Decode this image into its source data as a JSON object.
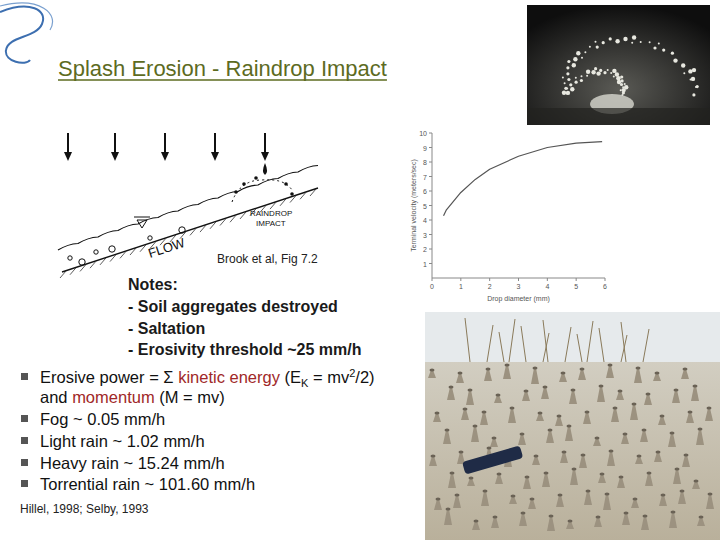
{
  "title": "Splash Erosion - Raindrop Impact",
  "diagram": {
    "labels": [
      "RAINDROP",
      "IMPACT"
    ],
    "flow": "FLOW",
    "caption": "Brook et al, Fig 7.2"
  },
  "notes": {
    "heading": "Notes:",
    "items": [
      "- Soil aggregates destroyed",
      "- Saltation",
      "- Erosivity threshold ~25 mm/h"
    ]
  },
  "bullets": [
    {
      "lines": [
        [
          {
            "text": "Erosive power = Σ "
          },
          {
            "text": "kinetic energy",
            "format": "emphasis"
          },
          {
            "text": " (E"
          },
          {
            "text": "K",
            "format": "sub"
          },
          {
            "text": " = mv"
          },
          {
            "text": "2",
            "format": "sup"
          },
          {
            "text": "/2)"
          }
        ],
        [
          {
            "text": "and "
          },
          {
            "text": "momentum",
            "format": "emphasis"
          },
          {
            "text": " (M = mv)"
          }
        ]
      ]
    },
    {
      "lines": [
        [
          {
            "text": "Fog ~ 0.05 mm/h"
          }
        ]
      ]
    },
    {
      "lines": [
        [
          {
            "text": "Light rain ~ 1.02 mm/h"
          }
        ]
      ]
    },
    {
      "lines": [
        [
          {
            "text": "Heavy rain ~ 15.24 mm/h"
          }
        ]
      ]
    },
    {
      "lines": [
        [
          {
            "text": "Torrential rain ~ 101.60 mm/h"
          }
        ]
      ]
    }
  ],
  "citation": "Hillel, 1998; Selby, 1993",
  "chart_data": {
    "type": "line",
    "x": [
      0.4,
      0.5,
      1,
      1.5,
      2,
      3,
      4,
      5,
      5.9
    ],
    "values": [
      4.3,
      4.7,
      5.9,
      6.8,
      7.5,
      8.4,
      9.0,
      9.3,
      9.4
    ],
    "color": "#555555",
    "xlim": [
      0,
      6
    ],
    "xticks": [
      0,
      1,
      2,
      3,
      4,
      5,
      6
    ],
    "ylim": [
      0,
      10
    ],
    "yticks": [
      1,
      2,
      3,
      4,
      5,
      6,
      7,
      8,
      9,
      10
    ],
    "x_label": "Drop diameter (mm)",
    "y_label": "Terminal velocity (meters/sec)"
  }
}
